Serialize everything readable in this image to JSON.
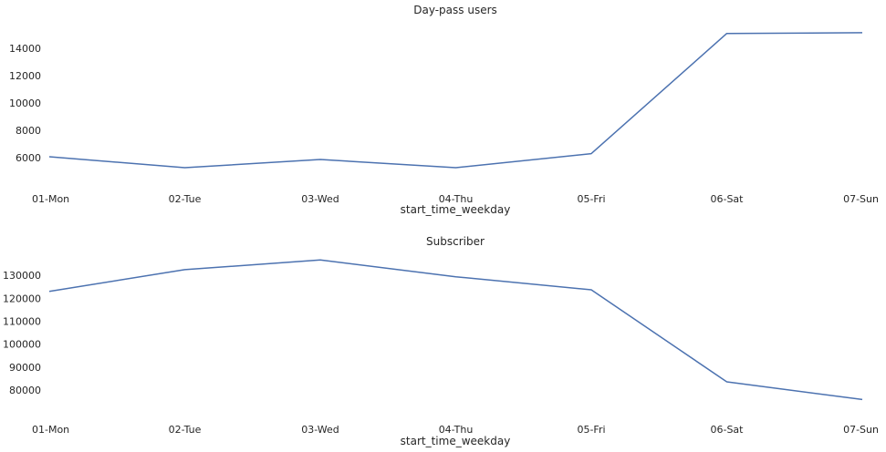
{
  "chart_data": [
    {
      "type": "line",
      "title": "Day-pass users",
      "xlabel": "start_time_weekday",
      "ylabel": "",
      "categories": [
        "01-Mon",
        "02-Tue",
        "03-Wed",
        "04-Thu",
        "05-Fri",
        "06-Sat",
        "07-Sun"
      ],
      "values": [
        6050,
        5250,
        5850,
        5250,
        6280,
        15080,
        15130
      ],
      "ylim": [
        4650,
        15660
      ],
      "yticks": [
        6000,
        8000,
        10000,
        12000,
        14000
      ],
      "grid": false,
      "line_color": "#4c72b0"
    },
    {
      "type": "line",
      "title": "Subscriber",
      "xlabel": "start_time_weekday",
      "ylabel": "",
      "categories": [
        "01-Mon",
        "02-Tue",
        "03-Wed",
        "04-Thu",
        "05-Fri",
        "06-Sat",
        "07-Sun"
      ],
      "values": [
        123000,
        132500,
        136700,
        129400,
        123700,
        83600,
        75900
      ],
      "ylim": [
        70500,
        140000
      ],
      "yticks": [
        80000,
        90000,
        100000,
        110000,
        120000,
        130000
      ],
      "grid": false,
      "line_color": "#4c72b0"
    }
  ]
}
